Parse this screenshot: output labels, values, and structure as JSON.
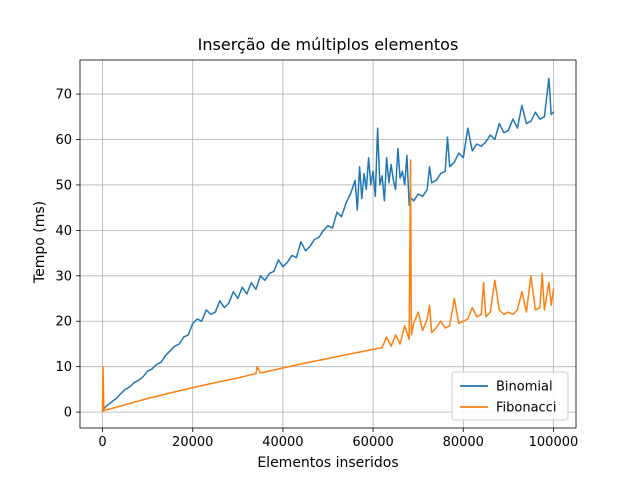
{
  "chart_data": {
    "type": "line",
    "title": "Inserção de múltiplos elementos",
    "xlabel": "Elementos inseridos",
    "ylabel": "Tempo (ms)",
    "xlim": [
      -5000,
      105000
    ],
    "ylim": [
      -3.5,
      77.5
    ],
    "xticks": [
      0,
      20000,
      40000,
      60000,
      80000,
      100000
    ],
    "yticks": [
      0,
      10,
      20,
      30,
      40,
      50,
      60,
      70
    ],
    "xtick_labels": [
      "0",
      "20000",
      "40000",
      "60000",
      "80000",
      "100000"
    ],
    "ytick_labels": [
      "0",
      "10",
      "20",
      "30",
      "40",
      "50",
      "60",
      "70"
    ],
    "grid": true,
    "legend_position": "lower-right",
    "series": [
      {
        "name": "Binomial",
        "color": "#1f77b4",
        "x": [
          0,
          500,
          1000,
          2000,
          3000,
          4000,
          5000,
          6000,
          7000,
          8000,
          9000,
          10000,
          11000,
          12000,
          13000,
          14000,
          15000,
          16000,
          17000,
          18000,
          19000,
          20000,
          21000,
          22000,
          23000,
          24000,
          25000,
          26000,
          27000,
          28000,
          29000,
          30000,
          31000,
          32000,
          33000,
          34000,
          35000,
          36000,
          37000,
          38000,
          39000,
          40000,
          41000,
          42000,
          43000,
          44000,
          45000,
          46000,
          47000,
          48000,
          49000,
          50000,
          51000,
          52000,
          53000,
          54000,
          55000,
          56000,
          56500,
          57000,
          57500,
          58000,
          58500,
          59000,
          59500,
          60000,
          60500,
          61000,
          61500,
          62000,
          62500,
          63000,
          63500,
          64000,
          64500,
          65000,
          65500,
          66000,
          66500,
          67000,
          67500,
          68000,
          68500,
          69000,
          70000,
          71000,
          72000,
          72500,
          73000,
          74000,
          75000,
          76000,
          76500,
          77000,
          78000,
          79000,
          80000,
          81000,
          82000,
          83000,
          84000,
          85000,
          86000,
          87000,
          88000,
          89000,
          90000,
          91000,
          92000,
          93000,
          94000,
          95000,
          96000,
          97000,
          98000,
          99000,
          99500,
          100000
        ],
        "y": [
          0.2,
          1.0,
          1.5,
          2.2,
          3.0,
          4.0,
          5.0,
          5.5,
          6.5,
          7.0,
          7.8,
          9.0,
          9.5,
          10.5,
          11.0,
          12.5,
          13.5,
          14.5,
          15.0,
          16.5,
          17.0,
          19.5,
          20.5,
          20.0,
          22.5,
          21.5,
          22.0,
          24.5,
          23.0,
          24.0,
          26.5,
          25.0,
          27.5,
          26.0,
          28.5,
          27.0,
          30.0,
          29.0,
          30.5,
          31.0,
          33.5,
          32.0,
          33.0,
          34.5,
          34.0,
          37.5,
          35.5,
          36.5,
          38.0,
          38.5,
          40.0,
          41.0,
          40.5,
          44.0,
          43.0,
          46.0,
          48.0,
          51.0,
          44.5,
          54.0,
          47.0,
          52.5,
          49.0,
          56.0,
          50.0,
          53.0,
          47.5,
          62.5,
          50.0,
          52.0,
          46.5,
          56.0,
          50.5,
          54.5,
          51.0,
          49.0,
          58.0,
          51.5,
          53.0,
          50.0,
          56.5,
          45.5,
          47.0,
          46.5,
          48.0,
          47.5,
          49.0,
          54.0,
          50.5,
          51.0,
          52.5,
          53.0,
          60.5,
          54.0,
          55.0,
          57.0,
          56.0,
          62.5,
          57.5,
          59.0,
          58.5,
          59.5,
          61.0,
          60.0,
          63.5,
          61.5,
          62.0,
          64.5,
          62.5,
          67.5,
          63.5,
          64.0,
          66.0,
          64.5,
          65.0,
          73.5,
          65.5,
          66.0
        ]
      },
      {
        "name": "Fibonacci",
        "color": "#ff7f0e",
        "x": [
          0,
          100,
          300,
          2000,
          5000,
          10000,
          15000,
          20000,
          25000,
          30000,
          34000,
          34300,
          35000,
          40000,
          45000,
          50000,
          55000,
          60000,
          62000,
          63000,
          64000,
          65000,
          66000,
          67000,
          68000,
          68300,
          68500,
          69000,
          70000,
          71000,
          72000,
          72500,
          73000,
          74000,
          75000,
          76000,
          77000,
          78000,
          79000,
          80000,
          81000,
          82000,
          83000,
          84000,
          84500,
          85000,
          86000,
          87000,
          88000,
          89000,
          90000,
          91000,
          92000,
          93000,
          94000,
          95000,
          96000,
          97000,
          97500,
          98000,
          99000,
          99500,
          100000
        ],
        "y": [
          0.2,
          10.0,
          0.3,
          0.8,
          1.6,
          3.0,
          4.2,
          5.4,
          6.5,
          7.5,
          8.5,
          10.0,
          8.6,
          9.7,
          10.8,
          11.8,
          12.8,
          13.8,
          14.2,
          16.5,
          14.5,
          17.0,
          15.0,
          19.0,
          16.0,
          55.5,
          17.0,
          19.5,
          22.0,
          18.0,
          20.5,
          23.5,
          17.5,
          18.5,
          20.0,
          18.5,
          19.0,
          25.0,
          19.5,
          20.0,
          20.5,
          23.0,
          21.0,
          21.5,
          28.5,
          21.0,
          22.0,
          29.0,
          22.5,
          21.5,
          22.0,
          21.5,
          22.5,
          26.5,
          22.0,
          30.0,
          22.5,
          23.0,
          30.5,
          22.5,
          28.5,
          23.5,
          27.0
        ]
      }
    ]
  }
}
